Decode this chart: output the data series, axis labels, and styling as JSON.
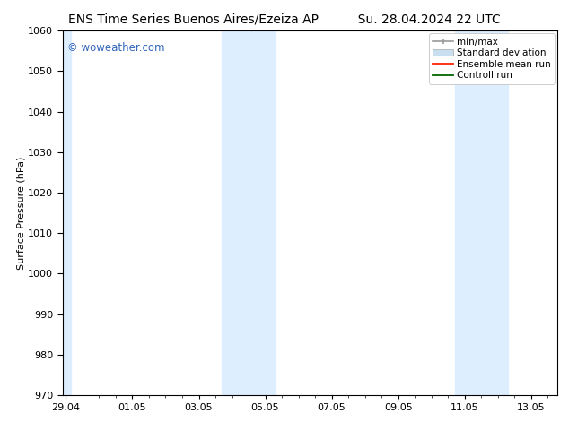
{
  "title_left": "ENS Time Series Buenos Aires/Ezeiza AP",
  "title_right": "Su. 28.04.2024 22 UTC",
  "ylabel": "Surface Pressure (hPa)",
  "ylim": [
    970,
    1060
  ],
  "yticks": [
    970,
    980,
    990,
    1000,
    1010,
    1020,
    1030,
    1040,
    1050,
    1060
  ],
  "xtick_labels": [
    "29.04",
    "01.05",
    "03.05",
    "05.05",
    "07.05",
    "09.05",
    "11.05",
    "13.05"
  ],
  "xtick_positions": [
    0,
    2,
    4,
    6,
    8,
    10,
    12,
    14
  ],
  "xlim": [
    -0.1,
    14.8
  ],
  "shaded_bands": [
    {
      "x_start": 4.7,
      "x_end": 6.3
    },
    {
      "x_start": 11.7,
      "x_end": 13.3
    }
  ],
  "left_shade": {
    "x_start": -0.1,
    "x_end": 0.15
  },
  "watermark": "© woweather.com",
  "watermark_color": "#3366bb",
  "background_color": "#ffffff",
  "plot_bg_color": "#ffffff",
  "shade_color": "#ddeeff",
  "title_fontsize": 10,
  "ylabel_fontsize": 8,
  "tick_fontsize": 8,
  "legend_fontsize": 7.5
}
